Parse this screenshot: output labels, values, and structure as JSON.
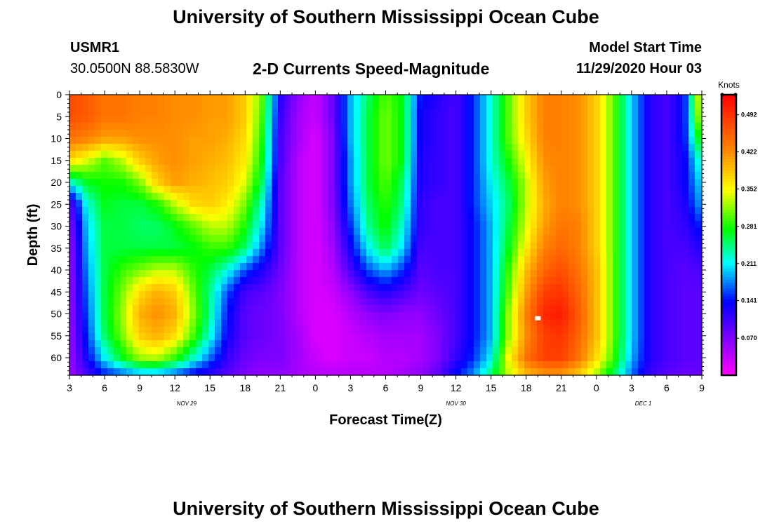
{
  "header": {
    "title": "University of Southern Mississippi Ocean Cube",
    "station": "USMR1",
    "location": "30.0500N 88.5830W",
    "product": "2-D Currents Speed-Magnitude",
    "model_label": "Model Start Time",
    "model_time": "11/29/2020 Hour 03"
  },
  "footer": {
    "title": "University of Southern Mississippi Ocean Cube"
  },
  "chart_data": {
    "type": "heatmap",
    "title": "2-D Currents Speed-Magnitude",
    "xlabel": "Forecast Time(Z)",
    "ylabel": "Depth (ft)",
    "x_ticks": [
      "3",
      "6",
      "9",
      "12",
      "15",
      "18",
      "21",
      "0",
      "3",
      "6",
      "9",
      "12",
      "15",
      "18",
      "21",
      "0",
      "3",
      "6",
      "9"
    ],
    "x_hours": [
      0,
      3,
      6,
      9,
      12,
      15,
      18,
      21,
      24,
      27,
      30,
      33,
      36,
      39,
      42,
      45,
      48,
      51,
      54
    ],
    "date_labels": [
      {
        "text": "NOV 29",
        "hour": 10
      },
      {
        "text": "NOV 30",
        "hour": 33
      },
      {
        "text": "DEC 1",
        "hour": 49
      }
    ],
    "y_ticks": [
      0,
      5,
      10,
      15,
      20,
      25,
      30,
      35,
      40,
      45,
      50,
      55,
      60
    ],
    "ylim": [
      0,
      64
    ],
    "xlim_hours": [
      0,
      54
    ],
    "colorbar": {
      "label": "Knots",
      "ticks": [
        "0.492",
        "0.422",
        "0.352",
        "0.281",
        "0.211",
        "0.141",
        "0.070"
      ],
      "tick_values": [
        0.492,
        0.422,
        0.352,
        0.281,
        0.211,
        0.141,
        0.07
      ],
      "range": [
        0.0,
        0.53
      ]
    },
    "depths": [
      0,
      5,
      10,
      15,
      20,
      25,
      30,
      35,
      40,
      45,
      50,
      55,
      60,
      64
    ],
    "time_hours": [
      0,
      1.5,
      3,
      4.5,
      6,
      7.5,
      9,
      10.5,
      12,
      13.5,
      15,
      16.5,
      18,
      19.5,
      21,
      22.5,
      24,
      25.5,
      27,
      28.5,
      30,
      31.5,
      33,
      34.5,
      36,
      37.5,
      39,
      40.5,
      42,
      43.5,
      45,
      46.5,
      48,
      49.5,
      51,
      52.5,
      54
    ],
    "speed_knots": [
      [
        0.47,
        0.46,
        0.44,
        0.44,
        0.43,
        0.43,
        0.42,
        0.42,
        0.41,
        0.41,
        0.38,
        0.3,
        0.12,
        0.06,
        0.03,
        0.08,
        0.19,
        0.25,
        0.3,
        0.27,
        0.14,
        0.12,
        0.1,
        0.15,
        0.22,
        0.3,
        0.38,
        0.43,
        0.43,
        0.42,
        0.38,
        0.3,
        0.2,
        0.12,
        0.1,
        0.14,
        0.38
      ],
      [
        0.47,
        0.46,
        0.44,
        0.44,
        0.43,
        0.43,
        0.42,
        0.42,
        0.41,
        0.41,
        0.38,
        0.29,
        0.11,
        0.05,
        0.03,
        0.08,
        0.19,
        0.26,
        0.31,
        0.27,
        0.13,
        0.11,
        0.1,
        0.15,
        0.22,
        0.3,
        0.38,
        0.43,
        0.43,
        0.42,
        0.38,
        0.3,
        0.2,
        0.12,
        0.1,
        0.14,
        0.36
      ],
      [
        0.44,
        0.43,
        0.41,
        0.41,
        0.42,
        0.42,
        0.42,
        0.41,
        0.41,
        0.4,
        0.37,
        0.28,
        0.1,
        0.05,
        0.02,
        0.07,
        0.19,
        0.26,
        0.31,
        0.27,
        0.13,
        0.11,
        0.1,
        0.15,
        0.22,
        0.3,
        0.37,
        0.43,
        0.43,
        0.42,
        0.38,
        0.3,
        0.2,
        0.12,
        0.1,
        0.14,
        0.3
      ],
      [
        0.37,
        0.34,
        0.3,
        0.33,
        0.38,
        0.41,
        0.42,
        0.41,
        0.4,
        0.39,
        0.36,
        0.27,
        0.1,
        0.04,
        0.02,
        0.07,
        0.18,
        0.26,
        0.31,
        0.27,
        0.12,
        0.11,
        0.1,
        0.15,
        0.22,
        0.28,
        0.35,
        0.42,
        0.43,
        0.42,
        0.38,
        0.3,
        0.2,
        0.12,
        0.1,
        0.13,
        0.24
      ],
      [
        0.22,
        0.27,
        0.28,
        0.28,
        0.31,
        0.38,
        0.41,
        0.4,
        0.39,
        0.38,
        0.34,
        0.25,
        0.09,
        0.04,
        0.02,
        0.07,
        0.18,
        0.26,
        0.3,
        0.25,
        0.12,
        0.11,
        0.1,
        0.15,
        0.21,
        0.26,
        0.33,
        0.41,
        0.43,
        0.42,
        0.38,
        0.3,
        0.2,
        0.12,
        0.1,
        0.13,
        0.21
      ],
      [
        0.08,
        0.22,
        0.27,
        0.26,
        0.26,
        0.28,
        0.33,
        0.37,
        0.38,
        0.36,
        0.31,
        0.22,
        0.09,
        0.04,
        0.02,
        0.07,
        0.17,
        0.25,
        0.29,
        0.24,
        0.11,
        0.1,
        0.1,
        0.15,
        0.2,
        0.25,
        0.33,
        0.4,
        0.43,
        0.42,
        0.38,
        0.3,
        0.2,
        0.12,
        0.1,
        0.12,
        0.19
      ],
      [
        0.06,
        0.2,
        0.26,
        0.26,
        0.25,
        0.25,
        0.27,
        0.3,
        0.33,
        0.33,
        0.28,
        0.2,
        0.09,
        0.04,
        0.02,
        0.06,
        0.15,
        0.24,
        0.28,
        0.22,
        0.11,
        0.1,
        0.1,
        0.14,
        0.19,
        0.26,
        0.34,
        0.41,
        0.44,
        0.43,
        0.38,
        0.3,
        0.2,
        0.12,
        0.1,
        0.11,
        0.15
      ],
      [
        0.05,
        0.19,
        0.26,
        0.26,
        0.26,
        0.26,
        0.26,
        0.27,
        0.29,
        0.29,
        0.25,
        0.17,
        0.09,
        0.04,
        0.02,
        0.05,
        0.13,
        0.21,
        0.26,
        0.2,
        0.1,
        0.1,
        0.1,
        0.14,
        0.19,
        0.27,
        0.36,
        0.43,
        0.45,
        0.43,
        0.38,
        0.3,
        0.2,
        0.12,
        0.1,
        0.1,
        0.12
      ],
      [
        0.05,
        0.18,
        0.26,
        0.29,
        0.31,
        0.33,
        0.33,
        0.29,
        0.26,
        0.22,
        0.16,
        0.12,
        0.08,
        0.04,
        0.02,
        0.04,
        0.1,
        0.16,
        0.19,
        0.15,
        0.09,
        0.1,
        0.1,
        0.14,
        0.19,
        0.29,
        0.39,
        0.45,
        0.47,
        0.44,
        0.39,
        0.3,
        0.2,
        0.12,
        0.1,
        0.09,
        0.1
      ],
      [
        0.05,
        0.17,
        0.26,
        0.31,
        0.37,
        0.4,
        0.38,
        0.31,
        0.24,
        0.16,
        0.1,
        0.09,
        0.07,
        0.04,
        0.02,
        0.03,
        0.06,
        0.1,
        0.12,
        0.1,
        0.08,
        0.09,
        0.1,
        0.14,
        0.19,
        0.3,
        0.41,
        0.48,
        0.49,
        0.45,
        0.39,
        0.3,
        0.2,
        0.12,
        0.1,
        0.09,
        0.09
      ],
      [
        0.05,
        0.16,
        0.26,
        0.32,
        0.4,
        0.42,
        0.4,
        0.32,
        0.24,
        0.14,
        0.09,
        0.08,
        0.07,
        0.04,
        0.02,
        0.02,
        0.04,
        0.06,
        0.07,
        0.06,
        0.06,
        0.08,
        0.1,
        0.14,
        0.19,
        0.32,
        0.43,
        0.5,
        0.51,
        0.46,
        0.39,
        0.3,
        0.2,
        0.12,
        0.1,
        0.09,
        0.09
      ],
      [
        0.05,
        0.15,
        0.25,
        0.31,
        0.38,
        0.4,
        0.37,
        0.3,
        0.22,
        0.13,
        0.09,
        0.08,
        0.07,
        0.05,
        0.02,
        0.02,
        0.03,
        0.04,
        0.05,
        0.05,
        0.05,
        0.07,
        0.1,
        0.14,
        0.19,
        0.32,
        0.42,
        0.48,
        0.49,
        0.45,
        0.39,
        0.3,
        0.2,
        0.12,
        0.1,
        0.09,
        0.09
      ],
      [
        0.05,
        0.13,
        0.21,
        0.27,
        0.32,
        0.33,
        0.29,
        0.23,
        0.17,
        0.11,
        0.08,
        0.07,
        0.07,
        0.05,
        0.03,
        0.02,
        0.03,
        0.03,
        0.04,
        0.04,
        0.05,
        0.07,
        0.11,
        0.15,
        0.21,
        0.35,
        0.44,
        0.48,
        0.48,
        0.44,
        0.37,
        0.29,
        0.19,
        0.12,
        0.1,
        0.09,
        0.09
      ],
      [
        0.05,
        0.1,
        0.14,
        0.16,
        0.18,
        0.18,
        0.16,
        0.13,
        0.11,
        0.09,
        0.07,
        0.06,
        0.06,
        0.05,
        0.04,
        0.04,
        0.04,
        0.04,
        0.04,
        0.05,
        0.06,
        0.09,
        0.14,
        0.18,
        0.25,
        0.33,
        0.39,
        0.41,
        0.41,
        0.38,
        0.32,
        0.25,
        0.17,
        0.11,
        0.09,
        0.08,
        0.08
      ]
    ],
    "marker": {
      "hour": 40,
      "depth": 51
    }
  }
}
